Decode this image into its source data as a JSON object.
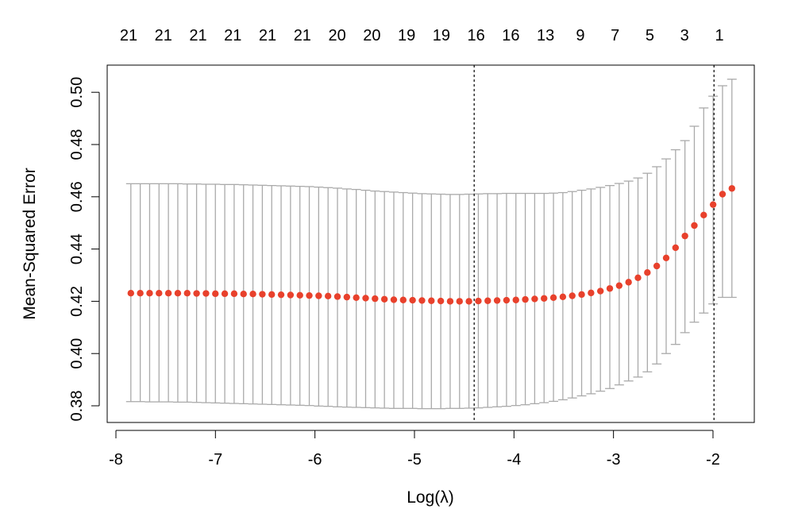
{
  "chart_data": {
    "type": "scatter",
    "xlabel": "Log(λ)",
    "ylabel": "Mean-Squared Error",
    "xlim": [
      -7.9,
      -1.8
    ],
    "ylim": [
      0.378,
      0.505
    ],
    "x_ticks": [
      -8,
      -7,
      -6,
      -5,
      -4,
      -3,
      -2
    ],
    "x_tick_labels": [
      "-8",
      "-7",
      "-6",
      "-5",
      "-4",
      "-3",
      "-2"
    ],
    "y_ticks": [
      0.38,
      0.4,
      0.42,
      0.44,
      0.46,
      0.48,
      0.5
    ],
    "y_tick_labels": [
      "0.38",
      "0.40",
      "0.42",
      "0.44",
      "0.46",
      "0.48",
      "0.50"
    ],
    "top_axis_labels": [
      "21",
      "21",
      "21",
      "21",
      "21",
      "21",
      "20",
      "20",
      "19",
      "19",
      "16",
      "16",
      "13",
      "9",
      "7",
      "5",
      "3",
      "1"
    ],
    "vlines": [
      -4.4,
      -1.99
    ],
    "x_min": -7.85,
    "x_max": -1.81,
    "cvm": [
      0.4231,
      0.4231,
      0.4231,
      0.4231,
      0.4231,
      0.4231,
      0.4231,
      0.423,
      0.423,
      0.4229,
      0.4229,
      0.4229,
      0.4228,
      0.4228,
      0.4227,
      0.4226,
      0.4225,
      0.4224,
      0.4223,
      0.4222,
      0.4221,
      0.422,
      0.4218,
      0.4216,
      0.4214,
      0.4212,
      0.421,
      0.4208,
      0.4206,
      0.4205,
      0.4204,
      0.4203,
      0.4202,
      0.4201,
      0.42,
      0.42,
      0.42,
      0.4201,
      0.4202,
      0.4203,
      0.4204,
      0.4205,
      0.4207,
      0.4209,
      0.4211,
      0.4214,
      0.4217,
      0.4221,
      0.4226,
      0.4232,
      0.4239,
      0.4249,
      0.426,
      0.4273,
      0.429,
      0.431,
      0.4335,
      0.4366,
      0.4405,
      0.445,
      0.449,
      0.453,
      0.457,
      0.461,
      0.4632
    ],
    "upper": [
      0.465,
      0.465,
      0.465,
      0.465,
      0.465,
      0.465,
      0.4649,
      0.4649,
      0.4648,
      0.4648,
      0.4647,
      0.4647,
      0.4646,
      0.4645,
      0.4644,
      0.4643,
      0.4642,
      0.4641,
      0.464,
      0.4639,
      0.4637,
      0.4635,
      0.4633,
      0.463,
      0.4628,
      0.4625,
      0.4622,
      0.462,
      0.4618,
      0.4616,
      0.4614,
      0.4612,
      0.4611,
      0.461,
      0.4609,
      0.4609,
      0.461,
      0.4611,
      0.4612,
      0.4612,
      0.4613,
      0.4613,
      0.4613,
      0.4613,
      0.4613,
      0.4614,
      0.4616,
      0.462,
      0.4625,
      0.463,
      0.4636,
      0.4643,
      0.4651,
      0.466,
      0.4672,
      0.469,
      0.4715,
      0.4745,
      0.478,
      0.4815,
      0.487,
      0.494,
      0.4985,
      0.5025,
      0.505
    ],
    "lower": [
      0.3816,
      0.3816,
      0.3815,
      0.3815,
      0.3815,
      0.3814,
      0.3814,
      0.3813,
      0.3812,
      0.3811,
      0.381,
      0.3809,
      0.3808,
      0.3807,
      0.3806,
      0.3805,
      0.3804,
      0.3803,
      0.3802,
      0.3801,
      0.3799,
      0.3798,
      0.3796,
      0.3795,
      0.3794,
      0.3793,
      0.3792,
      0.3791,
      0.379,
      0.379,
      0.379,
      0.3789,
      0.3789,
      0.3789,
      0.379,
      0.379,
      0.3791,
      0.3792,
      0.3794,
      0.3796,
      0.3798,
      0.3801,
      0.3804,
      0.3808,
      0.3812,
      0.3817,
      0.3823,
      0.383,
      0.3838,
      0.3846,
      0.3856,
      0.3866,
      0.388,
      0.3895,
      0.391,
      0.393,
      0.396,
      0.4,
      0.4035,
      0.408,
      0.412,
      0.4155,
      0.419,
      0.4215,
      0.4215
    ]
  }
}
